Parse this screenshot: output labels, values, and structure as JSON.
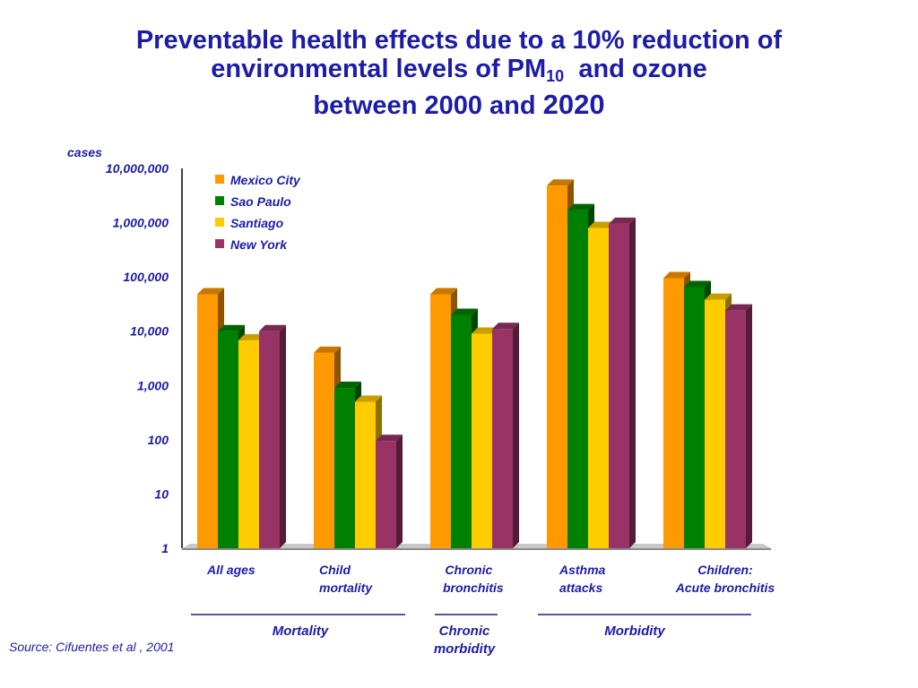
{
  "title": {
    "line1": "Preventable health effects due to a 10% reduction of",
    "line2_pre": "environmental levels of PM",
    "line2_sub": "10",
    "line2_post": "  and ozone",
    "line3_pre": "between 2000 and ",
    "line3_year": "2020"
  },
  "source": "Source: Cifuentes et al , 2001",
  "categories": [
    {
      "line1": "All ages",
      "line2": ""
    },
    {
      "line1": "Child",
      "line2": "mortality"
    },
    {
      "line1": "Chronic",
      "line2": "bronchitis"
    },
    {
      "line1": "Asthma",
      "line2": "attacks"
    },
    {
      "line1": "Children:",
      "line2": "Acute bronchitis"
    }
  ],
  "groups": [
    {
      "line1": "Mortality",
      "line2": ""
    },
    {
      "line1": "Chronic",
      "line2": "morbidity"
    },
    {
      "line1": "Morbidity",
      "line2": ""
    }
  ],
  "chart_data": {
    "type": "bar",
    "scale": "log",
    "ylabel": "cases",
    "ylim": [
      1,
      10000000
    ],
    "yticks": [
      1,
      10,
      100,
      1000,
      10000,
      100000,
      1000000,
      10000000
    ],
    "ytick_labels": [
      "1",
      "10",
      "100",
      "1,000",
      "10,000",
      "100,000",
      "1,000,000",
      "10,000,000"
    ],
    "categories": [
      "All ages",
      "Child mortality",
      "Chronic bronchitis",
      "Asthma attacks",
      "Children: Acute bronchitis"
    ],
    "legend_position": "top-left",
    "series": [
      {
        "name": "Mexico City",
        "color": "#ff9900",
        "values": [
          48000,
          4000,
          48000,
          4800000,
          95000
        ]
      },
      {
        "name": "Sao Paulo",
        "color": "#008000",
        "values": [
          10000,
          900,
          20000,
          1700000,
          65000
        ]
      },
      {
        "name": "Santiago",
        "color": "#ffcc00",
        "values": [
          6800,
          500,
          9000,
          800000,
          38000
        ]
      },
      {
        "name": "New York",
        "color": "#993366",
        "values": [
          10000,
          95,
          11000,
          950000,
          24000
        ]
      }
    ]
  }
}
